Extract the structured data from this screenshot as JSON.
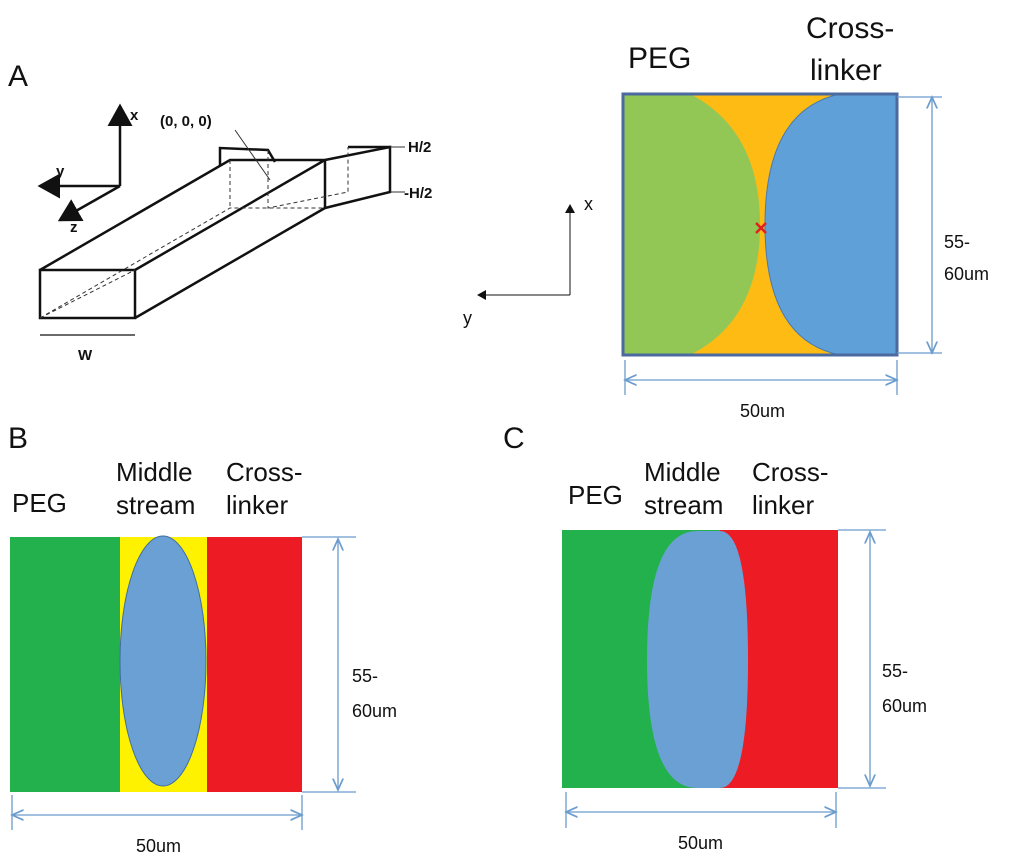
{
  "panel_a": {
    "label": "A",
    "channel": {
      "axes": [
        "x",
        "y",
        "z"
      ],
      "origin": "(0, 0, 0)",
      "top": "H/2",
      "bottom": "-H/2",
      "width": "W"
    },
    "cross_section": {
      "left": "PEG",
      "right": [
        "Cross-",
        "linker"
      ],
      "axes": [
        "x",
        "y"
      ],
      "height": [
        "55-",
        "60um"
      ],
      "width": "50um"
    }
  },
  "panel_b": {
    "label": "B",
    "left": "PEG",
    "middle": [
      "Middle",
      "stream"
    ],
    "right": [
      "Cross-",
      "linker"
    ],
    "height": [
      "55-",
      "60um"
    ],
    "width": "50um"
  },
  "panel_c": {
    "label": "C",
    "left": "PEG",
    "middle": [
      "Middle",
      "stream"
    ],
    "right": [
      "Cross-",
      "linker"
    ],
    "height": [
      "55-",
      "60um"
    ],
    "width": "50um"
  }
}
